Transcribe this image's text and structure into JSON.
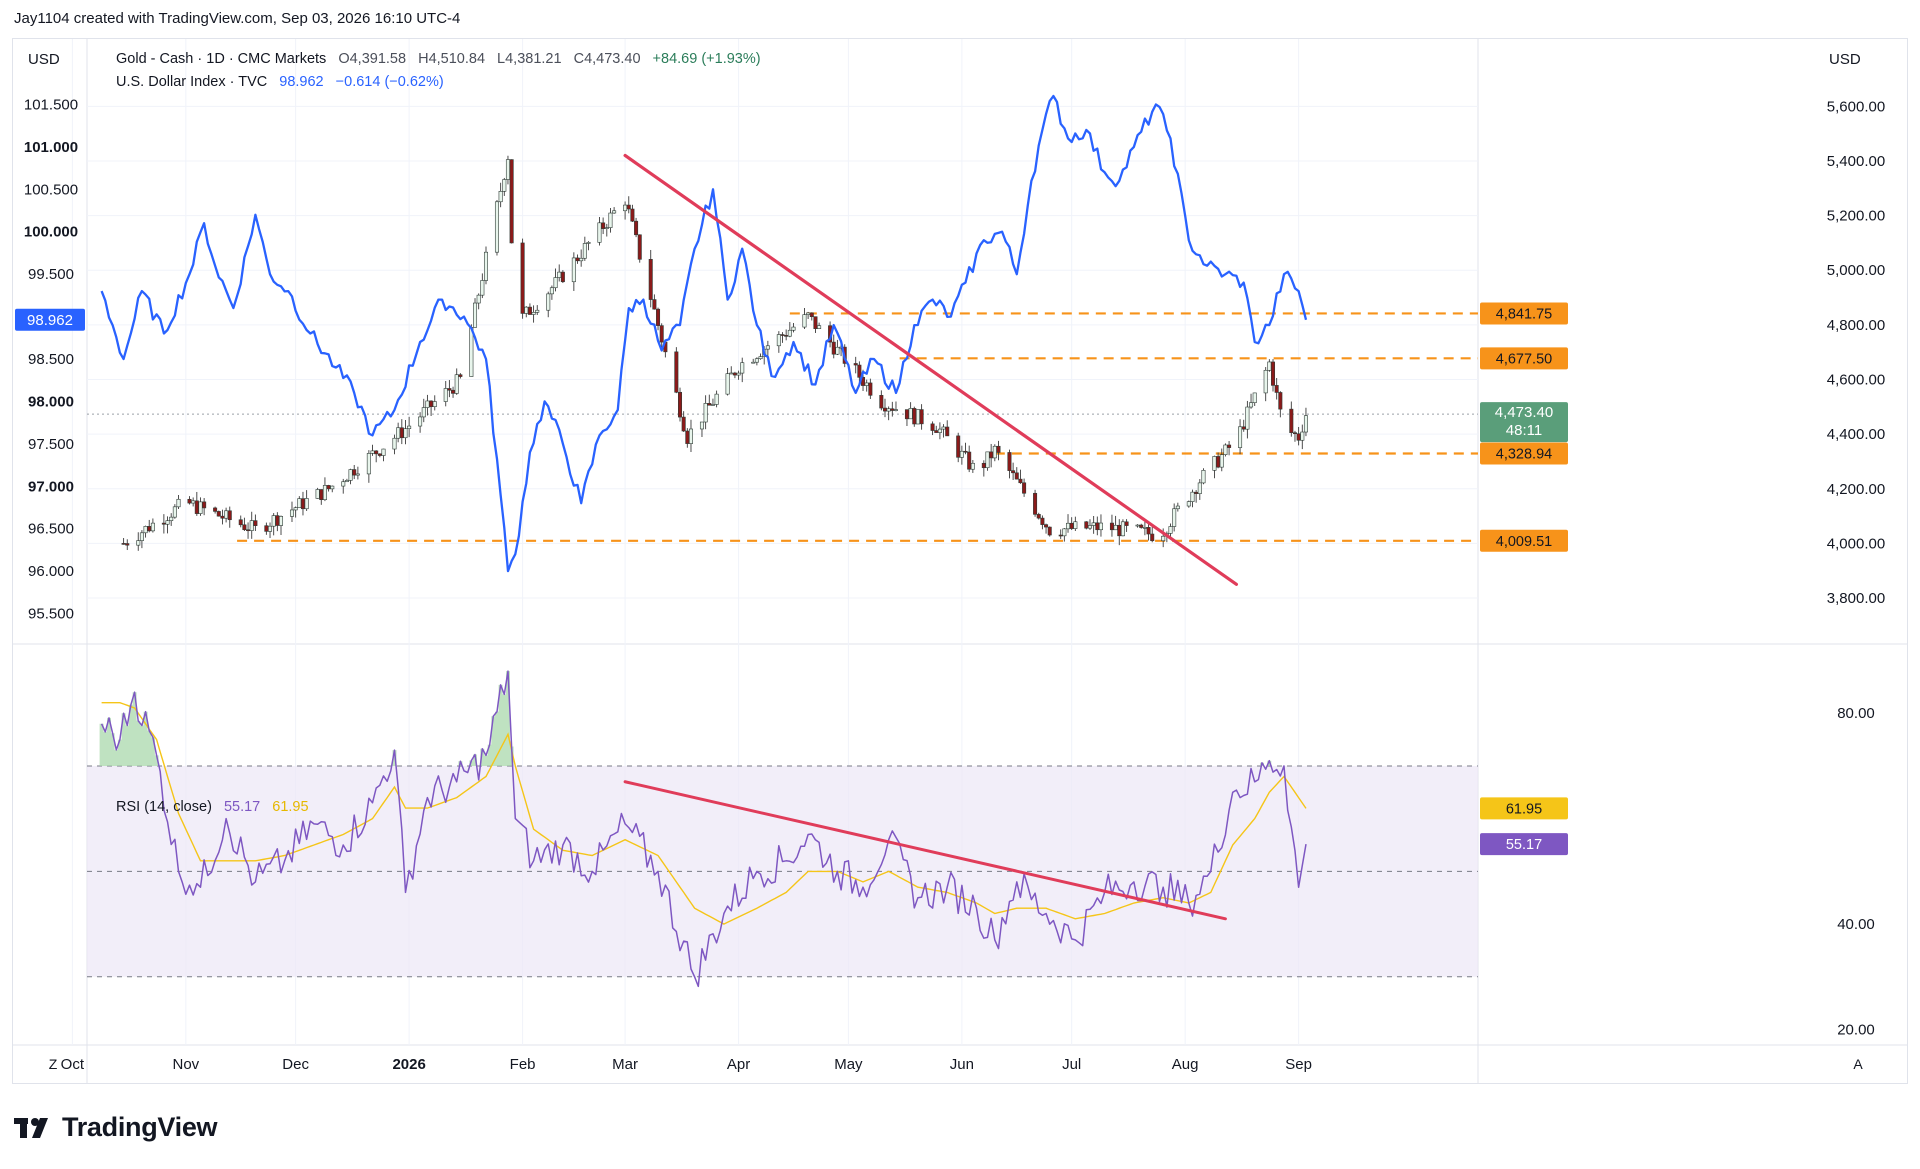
{
  "attribution": "Jay1104 created with TradingView.com, Sep 03, 2026 16:10 UTC-4",
  "brand": "TradingView",
  "colors": {
    "gold_up": "#26a69a",
    "gold_down": "#ef5350",
    "dxy_line": "#2962ff",
    "trendline": "#e03c5a",
    "support": "#f7931a",
    "rsi_line": "#7e57c2",
    "rsi_ma": "#f5c518",
    "rsi_band": "#ede7f6"
  },
  "legend": {
    "gold": {
      "name": "Gold - Cash · 1D · CMC Markets",
      "open": "O4,391.58",
      "high": "H4,510.84",
      "low": "L4,381.21",
      "close": "C4,473.40",
      "change": "+84.69 (+1.93%)"
    },
    "dxy": {
      "name": "U.S. Dollar Index · TVC",
      "value": "98.962",
      "change": "−0.614 (−0.62%)"
    },
    "rsi": {
      "name": "RSI (14, close)",
      "value": "55.17",
      "ma": "61.95"
    }
  },
  "axes": {
    "left_currency": "USD",
    "right_currency": "USD",
    "bottom_left_button": "Z",
    "bottom_right_button": "A"
  },
  "chart_data": [
    {
      "type": "line",
      "series_role": "Gold - Cash (candlestick, daily, right axis)",
      "y_axis": "right",
      "ylim": [
        3650,
        5700
      ],
      "yticks": [
        "3,800.00",
        "4,000.00",
        "4,200.00",
        "4,400.00",
        "4,600.00",
        "4,800.00",
        "5,000.00",
        "5,200.00",
        "5,400.00",
        "5,600.00"
      ],
      "ytick_values": [
        3800,
        4000,
        4200,
        4400,
        4600,
        4800,
        5000,
        5200,
        5400,
        5600
      ],
      "x": [
        "Oct 15",
        "Nov 1",
        "Nov 20",
        "Dec 10",
        "Dec 31",
        "Jan 15",
        "Jan 28",
        "Jan 30",
        "Feb 10",
        "Mar 1",
        "Mar 18",
        "Apr 1",
        "Apr 20",
        "May 10",
        "May 25",
        "Jun 5",
        "Jun 10",
        "Jun 25",
        "Jul 10",
        "Jul 25",
        "Aug 5",
        "Aug 15",
        "Aug 24",
        "Aug 28",
        "Sep 1",
        "Sep 3"
      ],
      "values": [
        4000,
        4150,
        4050,
        4200,
        4420,
        4600,
        5420,
        4800,
        4950,
        5260,
        4390,
        4650,
        4830,
        4520,
        4430,
        4260,
        4340,
        4050,
        4060,
        4030,
        4230,
        4380,
        4660,
        4420,
        4390,
        4473.4
      ],
      "price_labels": [
        {
          "value": 4841.75,
          "label": "4,841.75"
        },
        {
          "value": 4677.5,
          "label": "4,677.50"
        },
        {
          "value": 4473.4,
          "label": "4,473.40",
          "sublabel": "48:11"
        },
        {
          "value": 4328.94,
          "label": "4,328.94"
        },
        {
          "value": 4009.51,
          "label": "4,009.51"
        }
      ],
      "support_lines": [
        4841.75,
        4677.5,
        4328.94,
        4009.51
      ],
      "trendline": {
        "from": [
          "Mar 1",
          5420
        ],
        "to": [
          "Aug 15",
          3850
        ]
      }
    },
    {
      "type": "line",
      "series_role": "U.S. Dollar Index (left axis)",
      "y_axis": "left",
      "ylim": [
        95.2,
        101.8
      ],
      "yticks": [
        "95.500",
        "96.000",
        "96.500",
        "97.000",
        "97.500",
        "98.000",
        "98.500",
        "99.000",
        "99.500",
        "100.000",
        "100.500",
        "101.000",
        "101.500"
      ],
      "ytick_values": [
        95.5,
        96.0,
        96.5,
        97.0,
        97.5,
        98.0,
        98.5,
        99.0,
        99.5,
        100.0,
        100.5,
        101.0,
        101.5
      ],
      "x": [
        "Oct 9",
        "Oct 12",
        "Oct 15",
        "Oct 20",
        "Oct 26",
        "Nov 2",
        "Nov 6",
        "Nov 9",
        "Nov 14",
        "Nov 20",
        "Nov 24",
        "Nov 29",
        "Dec 5",
        "Dec 12",
        "Dec 17",
        "Dec 22",
        "Dec 28",
        "Jan 4",
        "Jan 10",
        "Jan 16",
        "Jan 22",
        "Jan 26",
        "Jan 28",
        "Jan 30",
        "Feb 3",
        "Feb 7",
        "Feb 12",
        "Feb 17",
        "Feb 22",
        "Feb 27",
        "Mar 2",
        "Mar 6",
        "Mar 11",
        "Mar 16",
        "Mar 20",
        "Mar 25",
        "Mar 29",
        "Apr 2",
        "Apr 6",
        "Apr 10",
        "Apr 16",
        "Apr 22",
        "Apr 27",
        "May 3",
        "May 8",
        "May 14",
        "May 19",
        "May 24",
        "May 29",
        "Jun 2",
        "Jun 7",
        "Jun 12",
        "Jun 16",
        "Jun 20",
        "Jun 23",
        "Jun 26",
        "Jun 30",
        "Jul 5",
        "Jul 10",
        "Jul 14",
        "Jul 18",
        "Jul 24",
        "Jul 28",
        "Aug 2",
        "Aug 7",
        "Aug 12",
        "Aug 17",
        "Aug 20",
        "Aug 24",
        "Aug 28",
        "Sep 1",
        "Sep 3"
      ],
      "values": [
        99.3,
        98.9,
        98.5,
        99.3,
        98.8,
        99.5,
        100.1,
        99.6,
        99.1,
        100.2,
        99.5,
        99.3,
        98.8,
        98.4,
        98.1,
        97.6,
        97.9,
        98.7,
        99.2,
        99.0,
        98.5,
        96.9,
        96.0,
        96.2,
        97.4,
        98.0,
        97.5,
        96.8,
        97.6,
        97.9,
        99.1,
        99.2,
        98.6,
        98.9,
        99.8,
        100.5,
        99.2,
        99.8,
        98.9,
        98.3,
        98.7,
        98.2,
        98.9,
        98.1,
        98.5,
        98.1,
        98.9,
        99.2,
        99.0,
        99.4,
        99.9,
        100.0,
        99.5,
        100.6,
        101.2,
        101.6,
        101.1,
        101.2,
        100.7,
        100.6,
        101.0,
        101.5,
        101.1,
        99.9,
        99.6,
        99.5,
        99.4,
        98.7,
        98.9,
        99.5,
        99.3,
        98.962
      ],
      "current_label": "98.962"
    },
    {
      "type": "line",
      "series_role": "RSI (14, close) with moving average",
      "y_axis": "right",
      "ylim": [
        18,
        92
      ],
      "yticks": [
        "20.00",
        "40.00",
        "80.00"
      ],
      "ytick_values": [
        20,
        40,
        80
      ],
      "bands": [
        30,
        50,
        70
      ],
      "x": [
        "Oct 9",
        "Oct 14",
        "Oct 18",
        "Oct 24",
        "Oct 30",
        "Nov 5",
        "Nov 12",
        "Nov 20",
        "Nov 28",
        "Dec 6",
        "Dec 14",
        "Dec 22",
        "Dec 28",
        "Dec 31",
        "Jan 6",
        "Jan 14",
        "Jan 22",
        "Jan 28",
        "Jan 30",
        "Feb 4",
        "Feb 12",
        "Feb 20",
        "Mar 1",
        "Mar 10",
        "Mar 20",
        "Mar 28",
        "Apr 6",
        "Apr 14",
        "Apr 20",
        "Apr 28",
        "May 5",
        "May 12",
        "May 20",
        "May 28",
        "Jun 5",
        "Jun 10",
        "Jun 16",
        "Jun 24",
        "Jul 2",
        "Jul 10",
        "Jul 18",
        "Jul 26",
        "Aug 2",
        "Aug 8",
        "Aug 14",
        "Aug 20",
        "Aug 24",
        "Aug 28",
        "Sep 1",
        "Sep 3"
      ],
      "values": [
        78,
        75,
        84,
        72,
        50,
        47,
        60,
        48,
        52,
        59,
        55,
        63,
        73,
        46,
        64,
        67,
        72,
        88,
        60,
        52,
        55,
        50,
        59,
        50,
        30,
        42,
        50,
        52,
        57,
        50,
        47,
        56,
        45,
        47,
        43,
        37,
        48,
        42,
        37,
        46,
        48,
        47,
        44,
        50,
        65,
        67,
        71,
        70,
        47,
        55.17
      ],
      "ma_values": [
        82,
        82,
        81,
        75,
        61,
        52,
        52,
        52,
        53,
        55,
        57,
        60,
        66,
        62,
        62,
        64,
        68,
        76,
        70,
        58,
        54,
        53,
        56,
        53,
        43,
        40,
        43,
        46,
        50,
        50,
        48,
        50,
        47,
        46,
        44,
        42,
        43,
        43,
        41,
        42,
        44,
        45,
        44,
        46,
        55,
        60,
        65,
        68,
        64,
        61.95
      ],
      "trendline": {
        "from": [
          "Mar 1",
          67
        ],
        "to": [
          "Aug 12",
          41
        ]
      }
    }
  ],
  "x_axis": {
    "ticks": [
      "Nov",
      "Dec",
      "2026",
      "Feb",
      "Mar",
      "Apr",
      "May",
      "Jun",
      "Jul",
      "Aug",
      "Sep",
      "Oct"
    ],
    "tick_dates": [
      "Nov 1",
      "Dec 1",
      "Jan 1",
      "Feb 1",
      "Mar 1",
      "Apr 1",
      "May 1",
      "Jun 1",
      "Jul 1",
      "Aug 1",
      "Sep 1",
      "Oct 1"
    ]
  }
}
